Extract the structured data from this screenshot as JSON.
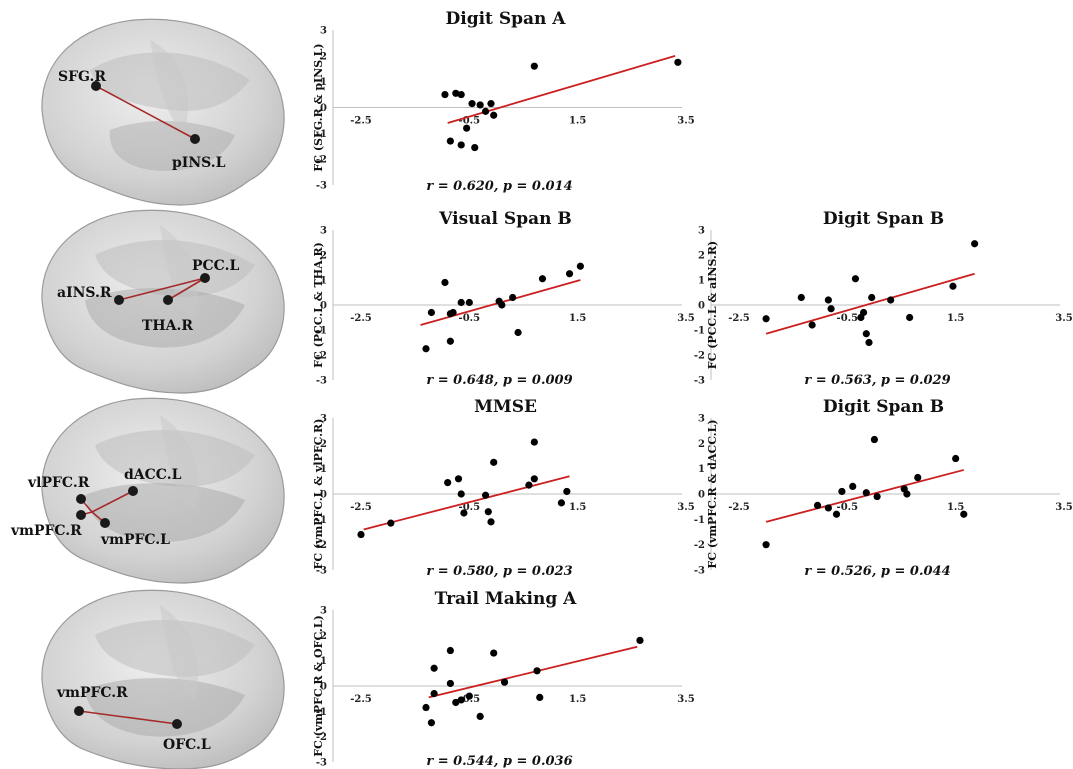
{
  "chart_data": [
    {
      "type": "scatter",
      "title": "Digit Span A",
      "ylabel": "FC (SFG.R & pINS.L)",
      "xlim": [
        -2.5,
        3.5
      ],
      "ylim": [
        -3,
        3
      ],
      "xticks": [
        -2.5,
        -0.5,
        1.5,
        3.5
      ],
      "yticks": [
        -3,
        -2,
        -1,
        0,
        1,
        2,
        3
      ],
      "points": [
        {
          "x": -0.95,
          "y": 0.5
        },
        {
          "x": -0.75,
          "y": 0.55
        },
        {
          "x": -0.65,
          "y": 0.5
        },
        {
          "x": -0.45,
          "y": 0.15
        },
        {
          "x": -0.3,
          "y": 0.1
        },
        {
          "x": -0.2,
          "y": -0.15
        },
        {
          "x": -0.1,
          "y": 0.15
        },
        {
          "x": -0.05,
          "y": -0.3
        },
        {
          "x": 0.7,
          "y": 1.6
        },
        {
          "x": 3.35,
          "y": 1.75
        },
        {
          "x": -0.55,
          "y": -0.8
        },
        {
          "x": -0.85,
          "y": -1.3
        },
        {
          "x": -0.65,
          "y": -1.45
        },
        {
          "x": -0.4,
          "y": -1.55
        }
      ],
      "trendline": {
        "x": [
          -0.9,
          3.3
        ],
        "y": [
          -0.6,
          2.0
        ]
      },
      "annotation": "r = 0.620,  p = 0.014"
    },
    {
      "type": "scatter",
      "title": "Visual Span B",
      "ylabel": "FC (PCC.L & THA.R)",
      "xlim": [
        -2.5,
        3.5
      ],
      "ylim": [
        -3,
        3
      ],
      "xticks": [
        -2.5,
        -0.5,
        1.5,
        3.5
      ],
      "yticks": [
        -3,
        -2,
        -1,
        0,
        1,
        2,
        3
      ],
      "points": [
        {
          "x": -1.3,
          "y": -1.75
        },
        {
          "x": -1.2,
          "y": -0.3
        },
        {
          "x": -0.95,
          "y": 0.9
        },
        {
          "x": -0.85,
          "y": -0.35
        },
        {
          "x": -0.8,
          "y": -0.3
        },
        {
          "x": -0.65,
          "y": 0.1
        },
        {
          "x": -0.5,
          "y": 0.1
        },
        {
          "x": -0.85,
          "y": -1.45
        },
        {
          "x": 0.05,
          "y": 0.15
        },
        {
          "x": 0.3,
          "y": 0.3
        },
        {
          "x": 0.4,
          "y": -1.1
        },
        {
          "x": 0.85,
          "y": 1.05
        },
        {
          "x": 1.35,
          "y": 1.25
        },
        {
          "x": 1.55,
          "y": 1.55
        },
        {
          "x": 0.1,
          "y": 0.0
        }
      ],
      "trendline": {
        "x": [
          -1.4,
          1.55
        ],
        "y": [
          -0.8,
          1.0
        ]
      },
      "annotation": "r = 0.648,  p = 0.009"
    },
    {
      "type": "scatter",
      "title": "Digit Span B",
      "ylabel": "FC (PCC.L & aINS.R)",
      "xlim": [
        -2.5,
        3.5
      ],
      "ylim": [
        -3,
        3
      ],
      "xticks": [
        -2.5,
        -0.5,
        1.5,
        3.5
      ],
      "yticks": [
        -3,
        -2,
        -1,
        0,
        1,
        2,
        3
      ],
      "points": [
        {
          "x": -2.0,
          "y": -0.55
        },
        {
          "x": -1.35,
          "y": 0.3
        },
        {
          "x": -1.15,
          "y": -0.8
        },
        {
          "x": -0.85,
          "y": 0.2
        },
        {
          "x": -0.8,
          "y": -0.15
        },
        {
          "x": -0.35,
          "y": 1.05
        },
        {
          "x": -0.2,
          "y": -0.3
        },
        {
          "x": -0.15,
          "y": -1.15
        },
        {
          "x": -0.1,
          "y": -1.5
        },
        {
          "x": -0.05,
          "y": 0.3
        },
        {
          "x": 0.3,
          "y": 0.2
        },
        {
          "x": 0.65,
          "y": -0.5
        },
        {
          "x": 1.45,
          "y": 0.75
        },
        {
          "x": 1.85,
          "y": 2.45
        },
        {
          "x": -0.25,
          "y": -0.5
        }
      ],
      "trendline": {
        "x": [
          -2.0,
          1.85
        ],
        "y": [
          -1.15,
          1.25
        ]
      },
      "annotation": "r = 0.563,  p = 0.029"
    },
    {
      "type": "scatter",
      "title": "MMSE",
      "ylabel": "FC (vmPFC.L & vlPFC.R)",
      "xlim": [
        -2.5,
        3.5
      ],
      "ylim": [
        -3,
        3
      ],
      "xticks": [
        -2.5,
        -0.5,
        1.5,
        3.5
      ],
      "yticks": [
        -3,
        -2,
        -1,
        0,
        1,
        2,
        3
      ],
      "points": [
        {
          "x": -2.5,
          "y": -1.6
        },
        {
          "x": -1.95,
          "y": -1.15
        },
        {
          "x": -0.9,
          "y": 0.45
        },
        {
          "x": -0.7,
          "y": 0.6
        },
        {
          "x": -0.65,
          "y": 0.0
        },
        {
          "x": -0.6,
          "y": -0.75
        },
        {
          "x": -0.2,
          "y": -0.05
        },
        {
          "x": -0.15,
          "y": -0.7
        },
        {
          "x": -0.1,
          "y": -1.1
        },
        {
          "x": -0.05,
          "y": 1.25
        },
        {
          "x": 0.6,
          "y": 0.35
        },
        {
          "x": 0.7,
          "y": 2.05
        },
        {
          "x": 0.7,
          "y": 0.6
        },
        {
          "x": 1.2,
          "y": -0.35
        },
        {
          "x": 1.3,
          "y": 0.1
        }
      ],
      "trendline": {
        "x": [
          -2.45,
          1.35
        ],
        "y": [
          -1.4,
          0.7
        ]
      },
      "annotation": "r = 0.580,  p = 0.023"
    },
    {
      "type": "scatter",
      "title": "Digit Span B",
      "ylabel": "FC (vmPFC.R & dACC.L)",
      "xlim": [
        -2.5,
        3.5
      ],
      "ylim": [
        -3,
        3
      ],
      "xticks": [
        -2.5,
        -0.5,
        1.5,
        3.5
      ],
      "yticks": [
        -3,
        -2,
        -1,
        0,
        1,
        2,
        3
      ],
      "points": [
        {
          "x": -2.0,
          "y": -2.0
        },
        {
          "x": -1.05,
          "y": -0.45
        },
        {
          "x": -0.85,
          "y": -0.55
        },
        {
          "x": -0.7,
          "y": -0.8
        },
        {
          "x": -0.6,
          "y": 0.1
        },
        {
          "x": -0.4,
          "y": 0.3
        },
        {
          "x": -0.15,
          "y": 0.05
        },
        {
          "x": 0.05,
          "y": -0.1
        },
        {
          "x": 0.0,
          "y": 2.15
        },
        {
          "x": 0.55,
          "y": 0.2
        },
        {
          "x": 0.6,
          "y": 0.0
        },
        {
          "x": 0.8,
          "y": 0.65
        },
        {
          "x": 1.5,
          "y": 1.4
        },
        {
          "x": 1.65,
          "y": -0.8
        }
      ],
      "trendline": {
        "x": [
          -2.0,
          1.65
        ],
        "y": [
          -1.1,
          0.95
        ]
      },
      "annotation": "r = 0.526,  p = 0.044"
    },
    {
      "type": "scatter",
      "title": "Trail Making A",
      "ylabel": "FC (vmPFC.R & OFC.L)",
      "xlim": [
        -2.5,
        3.5
      ],
      "ylim": [
        -3,
        3
      ],
      "xticks": [
        -2.5,
        -0.5,
        1.5,
        3.5
      ],
      "yticks": [
        -3,
        -2,
        -1,
        0,
        1,
        2,
        3
      ],
      "points": [
        {
          "x": -1.15,
          "y": 0.7
        },
        {
          "x": -1.15,
          "y": -0.3
        },
        {
          "x": -1.3,
          "y": -0.85
        },
        {
          "x": -1.2,
          "y": -1.45
        },
        {
          "x": -0.85,
          "y": 1.4
        },
        {
          "x": -0.85,
          "y": 0.1
        },
        {
          "x": -0.75,
          "y": -0.65
        },
        {
          "x": -0.65,
          "y": -0.55
        },
        {
          "x": -0.5,
          "y": -0.4
        },
        {
          "x": -0.3,
          "y": -1.2
        },
        {
          "x": -0.05,
          "y": 1.3
        },
        {
          "x": 0.15,
          "y": 0.15
        },
        {
          "x": 0.75,
          "y": 0.6
        },
        {
          "x": 0.8,
          "y": -0.45
        },
        {
          "x": 2.65,
          "y": 1.8
        }
      ],
      "trendline": {
        "x": [
          -1.25,
          2.6
        ],
        "y": [
          -0.45,
          1.55
        ]
      },
      "annotation": "r = 0.544,  p = 0.036"
    }
  ],
  "brains": [
    {
      "labels": [
        "SFG.R",
        "pINS.L"
      ]
    },
    {
      "labels": [
        "PCC.L",
        "aINS.R",
        "THA.R"
      ]
    },
    {
      "labels": [
        "vlPFC.R",
        "dACC.L",
        "vmPFC.R",
        "vmPFC.L"
      ]
    },
    {
      "labels": [
        "vmPFC.R",
        "OFC.L"
      ]
    }
  ],
  "colors": {
    "trendline": "#cc1f1f",
    "points": "#000000",
    "axis": "#bfbfbf",
    "node": "#1a1a1a",
    "edge": "#a52a2a"
  }
}
